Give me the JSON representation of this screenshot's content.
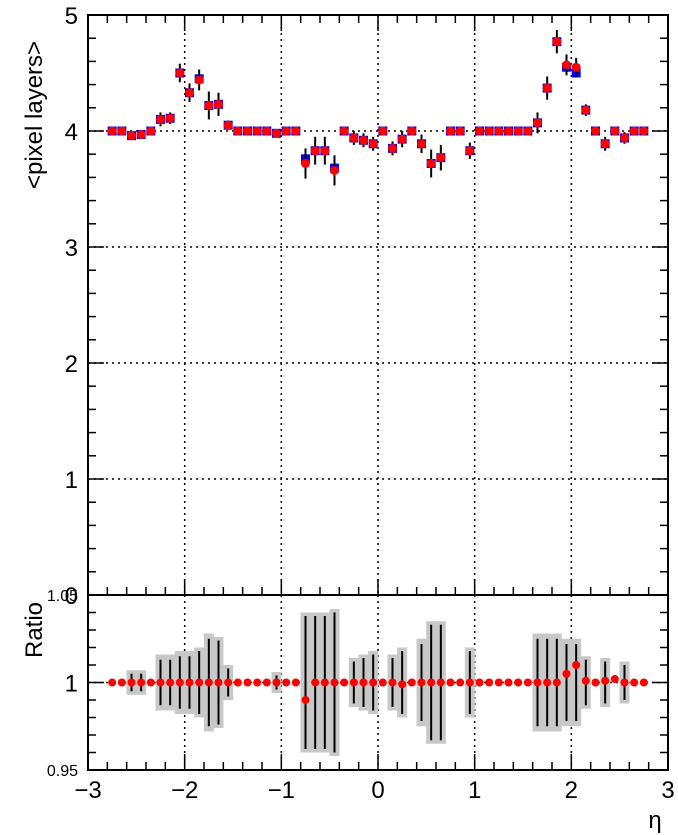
{
  "chart_data": [
    {
      "type": "scatter",
      "title": "",
      "xlabel": "",
      "ylabel": "<pixel layers>",
      "xlim": [
        -3,
        3
      ],
      "ylim": [
        0,
        5
      ],
      "grid": true,
      "legend": "none",
      "x_ticks": [
        "−3",
        "−2",
        "−1",
        "0",
        "1",
        "2",
        "3"
      ],
      "y_ticks": [
        "0",
        "1",
        "2",
        "3",
        "4",
        "5"
      ],
      "colors": {
        "series_a": "#0000ff",
        "series_b": "#ff0000",
        "errorbar": "#000000"
      },
      "x": [
        -2.75,
        -2.65,
        -2.55,
        -2.45,
        -2.35,
        -2.25,
        -2.15,
        -2.05,
        -1.95,
        -1.85,
        -1.75,
        -1.65,
        -1.55,
        -1.45,
        -1.35,
        -1.25,
        -1.15,
        -1.05,
        -0.95,
        -0.85,
        -0.75,
        -0.65,
        -0.55,
        -0.45,
        -0.35,
        -0.25,
        -0.15,
        -0.05,
        0.05,
        0.15,
        0.25,
        0.35,
        0.45,
        0.55,
        0.65,
        0.75,
        0.85,
        0.95,
        1.05,
        1.15,
        1.25,
        1.35,
        1.45,
        1.55,
        1.65,
        1.75,
        1.85,
        1.95,
        2.05,
        2.15,
        2.25,
        2.35,
        2.45,
        2.55,
        2.65,
        2.75
      ],
      "series": [
        {
          "values": [
            4.0,
            4.0,
            3.96,
            3.97,
            4.0,
            4.1,
            4.11,
            4.5,
            4.33,
            4.45,
            4.22,
            4.23,
            4.05,
            4.0,
            4.0,
            4.0,
            4.0,
            3.98,
            4.0,
            4.0,
            3.76,
            3.83,
            3.83,
            3.68,
            4.0,
            3.94,
            3.92,
            3.89,
            4.0,
            3.85,
            3.93,
            4.0,
            3.89,
            3.72,
            3.77,
            4.0,
            4.0,
            3.83,
            4.0,
            4.0,
            4.0,
            4.0,
            4.0,
            4.0,
            4.07,
            4.37,
            4.77,
            4.55,
            4.5,
            4.18,
            4.0,
            3.89,
            4.0,
            3.94,
            4.0,
            4.0
          ],
          "errors": [
            0.02,
            0.02,
            0.03,
            0.03,
            0.03,
            0.06,
            0.05,
            0.08,
            0.08,
            0.09,
            0.12,
            0.1,
            0.04,
            0.02,
            0.02,
            0.02,
            0.02,
            0.03,
            0.02,
            0.02,
            0.13,
            0.12,
            0.12,
            0.13,
            0.02,
            0.06,
            0.06,
            0.06,
            0.02,
            0.06,
            0.07,
            0.02,
            0.08,
            0.12,
            0.11,
            0.02,
            0.02,
            0.07,
            0.02,
            0.02,
            0.02,
            0.02,
            0.02,
            0.02,
            0.09,
            0.1,
            0.1,
            0.09,
            0.08,
            0.05,
            0.02,
            0.06,
            0.02,
            0.05,
            0.02,
            0.02
          ]
        },
        {
          "values": [
            4.0,
            4.0,
            3.96,
            3.97,
            4.0,
            4.1,
            4.11,
            4.5,
            4.33,
            4.44,
            4.22,
            4.23,
            4.05,
            4.0,
            4.0,
            4.0,
            4.0,
            3.98,
            4.0,
            4.0,
            3.72,
            3.83,
            3.83,
            3.66,
            4.0,
            3.94,
            3.92,
            3.89,
            4.0,
            3.85,
            3.93,
            4.0,
            3.89,
            3.72,
            3.77,
            4.0,
            4.0,
            3.83,
            4.0,
            4.0,
            4.0,
            4.0,
            4.0,
            4.0,
            4.07,
            4.37,
            4.77,
            4.57,
            4.55,
            4.18,
            4.0,
            3.89,
            4.0,
            3.94,
            4.0,
            4.0
          ],
          "errors": [
            0.02,
            0.02,
            0.03,
            0.03,
            0.03,
            0.06,
            0.05,
            0.08,
            0.08,
            0.09,
            0.12,
            0.1,
            0.04,
            0.02,
            0.02,
            0.02,
            0.02,
            0.03,
            0.02,
            0.02,
            0.13,
            0.12,
            0.12,
            0.13,
            0.02,
            0.06,
            0.06,
            0.06,
            0.02,
            0.06,
            0.07,
            0.02,
            0.08,
            0.12,
            0.11,
            0.02,
            0.02,
            0.07,
            0.02,
            0.02,
            0.02,
            0.02,
            0.02,
            0.02,
            0.09,
            0.1,
            0.1,
            0.09,
            0.08,
            0.05,
            0.02,
            0.06,
            0.02,
            0.05,
            0.02,
            0.02
          ]
        }
      ]
    },
    {
      "type": "scatter",
      "title": "",
      "xlabel": "η",
      "ylabel": "Ratio",
      "xlim": [
        -3,
        3
      ],
      "ylim": [
        0.95,
        1.05
      ],
      "grid": true,
      "legend": "none",
      "x_ticks": [
        "−3",
        "−2",
        "−1",
        "0",
        "1",
        "2",
        "3"
      ],
      "y_ticks": [
        "0.95",
        "1",
        "1.05"
      ],
      "colors": {
        "ratio": "#ff0000",
        "band": "#c8c8c8",
        "errorbar": "#000000"
      },
      "x": [
        -2.75,
        -2.65,
        -2.55,
        -2.45,
        -2.35,
        -2.25,
        -2.15,
        -2.05,
        -1.95,
        -1.85,
        -1.75,
        -1.65,
        -1.55,
        -1.45,
        -1.35,
        -1.25,
        -1.15,
        -1.05,
        -0.95,
        -0.85,
        -0.75,
        -0.65,
        -0.55,
        -0.45,
        -0.35,
        -0.25,
        -0.15,
        -0.05,
        0.05,
        0.15,
        0.25,
        0.35,
        0.45,
        0.55,
        0.65,
        0.75,
        0.85,
        0.95,
        1.05,
        1.15,
        1.25,
        1.35,
        1.45,
        1.55,
        1.65,
        1.75,
        1.85,
        1.95,
        2.05,
        2.15,
        2.25,
        2.35,
        2.45,
        2.55,
        2.65,
        2.75
      ],
      "ratio": [
        1,
        1,
        1,
        1,
        1,
        1,
        1,
        1,
        1,
        1,
        1,
        1,
        1,
        1,
        1,
        1,
        1,
        1,
        1,
        1,
        0.99,
        1,
        1,
        1,
        1,
        1,
        1,
        1,
        1,
        1,
        0.999,
        1,
        1,
        1,
        1,
        1,
        1,
        1,
        1,
        1,
        1,
        1,
        1,
        1,
        1,
        1,
        1,
        1.005,
        1.01,
        1.001,
        1,
        1.001,
        1.002,
        1,
        1,
        1
      ],
      "band": [
        0,
        0,
        0.007,
        0.007,
        0,
        0.016,
        0.016,
        0.018,
        0.018,
        0.02,
        0.028,
        0.026,
        0.01,
        0,
        0,
        0,
        0,
        0.006,
        0,
        0,
        0.04,
        0.04,
        0.04,
        0.042,
        0,
        0.014,
        0.016,
        0.018,
        0,
        0.016,
        0.02,
        0,
        0.025,
        0.035,
        0.035,
        0,
        0,
        0.02,
        0,
        0,
        0,
        0,
        0,
        0,
        0.028,
        0.028,
        0.028,
        0.025,
        0.025,
        0.015,
        0,
        0.014,
        0,
        0.012,
        0,
        0
      ],
      "bar": [
        0,
        0,
        0.005,
        0.005,
        0,
        0.013,
        0.013,
        0.015,
        0.015,
        0.018,
        0.025,
        0.024,
        0.008,
        0,
        0,
        0,
        0,
        0.004,
        0,
        0,
        0.038,
        0.038,
        0.038,
        0.04,
        0,
        0.012,
        0.014,
        0.016,
        0,
        0.014,
        0.018,
        0,
        0.022,
        0.033,
        0.033,
        0,
        0,
        0.018,
        0,
        0,
        0,
        0,
        0,
        0,
        0.025,
        0.025,
        0.025,
        0.022,
        0.022,
        0.013,
        0,
        0.012,
        0,
        0.01,
        0,
        0
      ]
    }
  ]
}
